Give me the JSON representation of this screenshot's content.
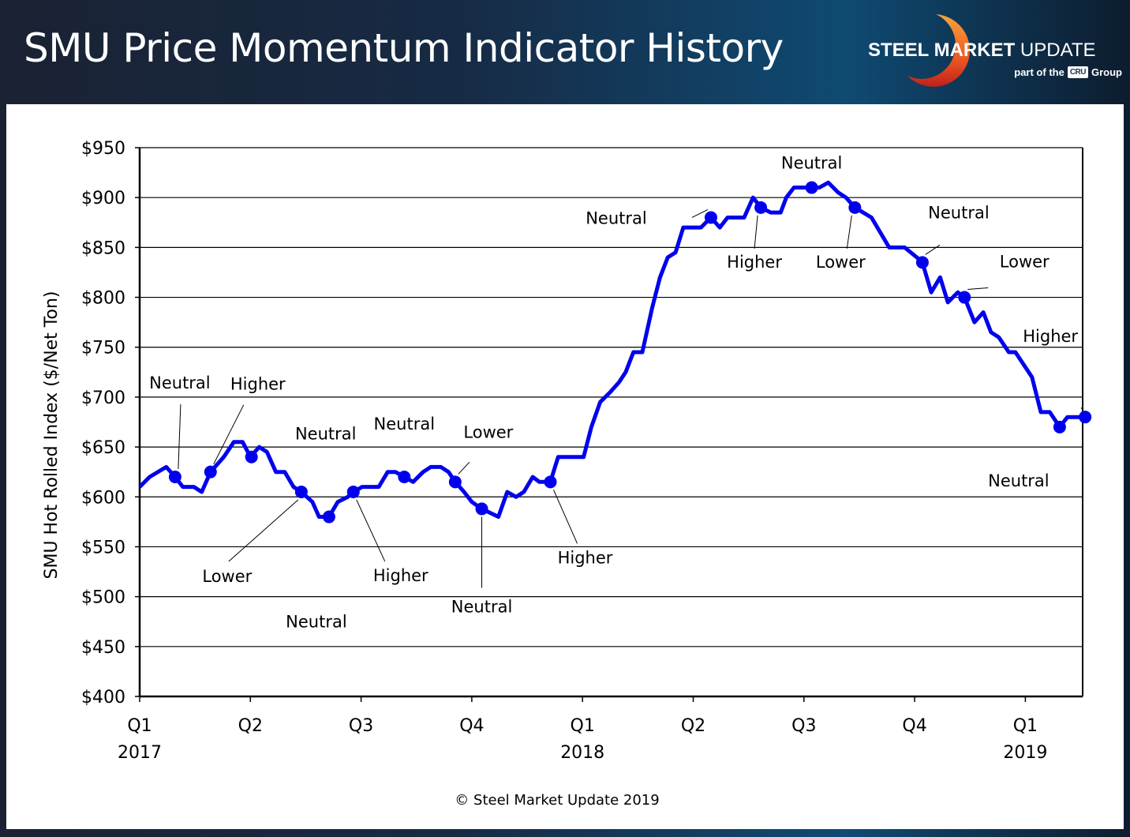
{
  "header": {
    "title": "SMU Price Momentum Indicator History",
    "logo_bold": "STEEL",
    "logo_mid": " MARKET",
    "logo_light": " UPDATE",
    "logo_sub_prefix": "part of the",
    "logo_sub_badge": "CRU",
    "logo_sub_suffix": "Group"
  },
  "footer": {
    "copyright": "© Steel Market Update 2019"
  },
  "colors": {
    "line": "#0000ee",
    "grid": "#000000",
    "background_dark": "#172a44",
    "logo_accent": "#f07a22"
  },
  "chart_data": {
    "type": "line",
    "title": "SMU Price Momentum Indicator History",
    "xlabel": "",
    "ylabel": "SMU Hot Rolled Index ($/Net Ton)",
    "ylim": [
      400,
      950
    ],
    "xlim": [
      0,
      8.54
    ],
    "x_units": "quarters since Q1 2017",
    "grid": true,
    "y_ticks": [
      400,
      450,
      500,
      550,
      600,
      650,
      700,
      750,
      800,
      850,
      900,
      950
    ],
    "y_tick_labels": [
      "$400",
      "$450",
      "$500",
      "$550",
      "$600",
      "$650",
      "$700",
      "$750",
      "$800",
      "$850",
      "$900",
      "$950"
    ],
    "x_ticks": [
      0,
      1,
      2,
      3,
      4,
      5,
      6,
      7,
      8
    ],
    "x_tick_labels": [
      "Q1",
      "Q2",
      "Q3",
      "Q4",
      "Q1",
      "Q2",
      "Q3",
      "Q4",
      "Q1"
    ],
    "x_year_labels": [
      {
        "x": 0,
        "label": "2017"
      },
      {
        "x": 4,
        "label": "2018"
      },
      {
        "x": 8,
        "label": "2019"
      }
    ],
    "series": [
      {
        "name": "SMU Hot Rolled Index",
        "x": [
          0,
          0.09,
          0.24,
          0.32,
          0.39,
          0.49,
          0.56,
          0.64,
          0.76,
          0.85,
          0.93,
          1.0,
          1.08,
          1.15,
          1.23,
          1.31,
          1.39,
          1.46,
          1.56,
          1.62,
          1.71,
          1.79,
          1.88,
          1.93,
          2.01,
          2.16,
          2.24,
          2.31,
          2.39,
          2.47,
          2.56,
          2.63,
          2.72,
          2.79,
          2.85,
          2.93,
          3.0,
          3.09,
          3.24,
          3.32,
          3.4,
          3.47,
          3.55,
          3.61,
          3.71,
          3.78,
          4.01,
          4.08,
          4.16,
          4.25,
          4.33,
          4.39,
          4.46,
          4.54,
          4.63,
          4.7,
          4.77,
          4.84,
          4.91,
          5.07,
          5.16,
          5.24,
          5.31,
          5.46,
          5.54,
          5.61,
          5.7,
          5.79,
          5.84,
          5.91,
          6.07,
          6.14,
          6.22,
          6.31,
          6.38,
          6.46,
          6.61,
          6.77,
          6.91,
          7.02,
          7.07,
          7.15,
          7.23,
          7.3,
          7.39,
          7.45,
          7.54,
          7.62,
          7.69,
          7.76,
          7.85,
          7.91,
          8.0,
          8.06,
          8.14,
          8.22,
          8.31,
          8.38,
          8.54
        ],
        "values": [
          610,
          620,
          630,
          620,
          610,
          610,
          605,
          625,
          640,
          655,
          655,
          640,
          650,
          645,
          625,
          625,
          610,
          605,
          595,
          580,
          580,
          595,
          600,
          605,
          610,
          610,
          625,
          625,
          620,
          615,
          625,
          630,
          630,
          625,
          615,
          605,
          595,
          588,
          580,
          605,
          600,
          605,
          620,
          615,
          615,
          640,
          640,
          670,
          695,
          705,
          715,
          725,
          745,
          745,
          790,
          820,
          840,
          845,
          870,
          870,
          880,
          870,
          880,
          880,
          900,
          890,
          885,
          885,
          900,
          910,
          910,
          910,
          915,
          905,
          900,
          890,
          880,
          850,
          850,
          840,
          835,
          805,
          820,
          795,
          805,
          800,
          775,
          785,
          765,
          760,
          745,
          745,
          730,
          720,
          685,
          685,
          670,
          680,
          680
        ]
      }
    ],
    "markers": [
      {
        "x": 0.32,
        "value": 620,
        "label": "Neutral"
      },
      {
        "x": 0.64,
        "value": 625,
        "label": "Higher"
      },
      {
        "x": 1.01,
        "value": 640,
        "label": "Neutral"
      },
      {
        "x": 1.46,
        "value": 605,
        "label": "Lower"
      },
      {
        "x": 1.71,
        "value": 580,
        "label": "Neutral"
      },
      {
        "x": 1.93,
        "value": 605,
        "label": "Higher"
      },
      {
        "x": 2.39,
        "value": 620,
        "label": "Neutral"
      },
      {
        "x": 2.85,
        "value": 615,
        "label": "Lower"
      },
      {
        "x": 3.09,
        "value": 588,
        "label": "Neutral"
      },
      {
        "x": 3.71,
        "value": 615,
        "label": "Higher"
      },
      {
        "x": 5.16,
        "value": 880,
        "label": "Neutral"
      },
      {
        "x": 5.61,
        "value": 890,
        "label": "Higher"
      },
      {
        "x": 6.07,
        "value": 910,
        "label": "Neutral"
      },
      {
        "x": 6.46,
        "value": 890,
        "label": "Lower"
      },
      {
        "x": 7.07,
        "value": 835,
        "label": "Neutral"
      },
      {
        "x": 7.45,
        "value": 800,
        "label": "Lower"
      },
      {
        "x": 8.31,
        "value": 670,
        "label": "Neutral"
      },
      {
        "x": 8.54,
        "value": 680,
        "label": "Higher"
      }
    ]
  }
}
